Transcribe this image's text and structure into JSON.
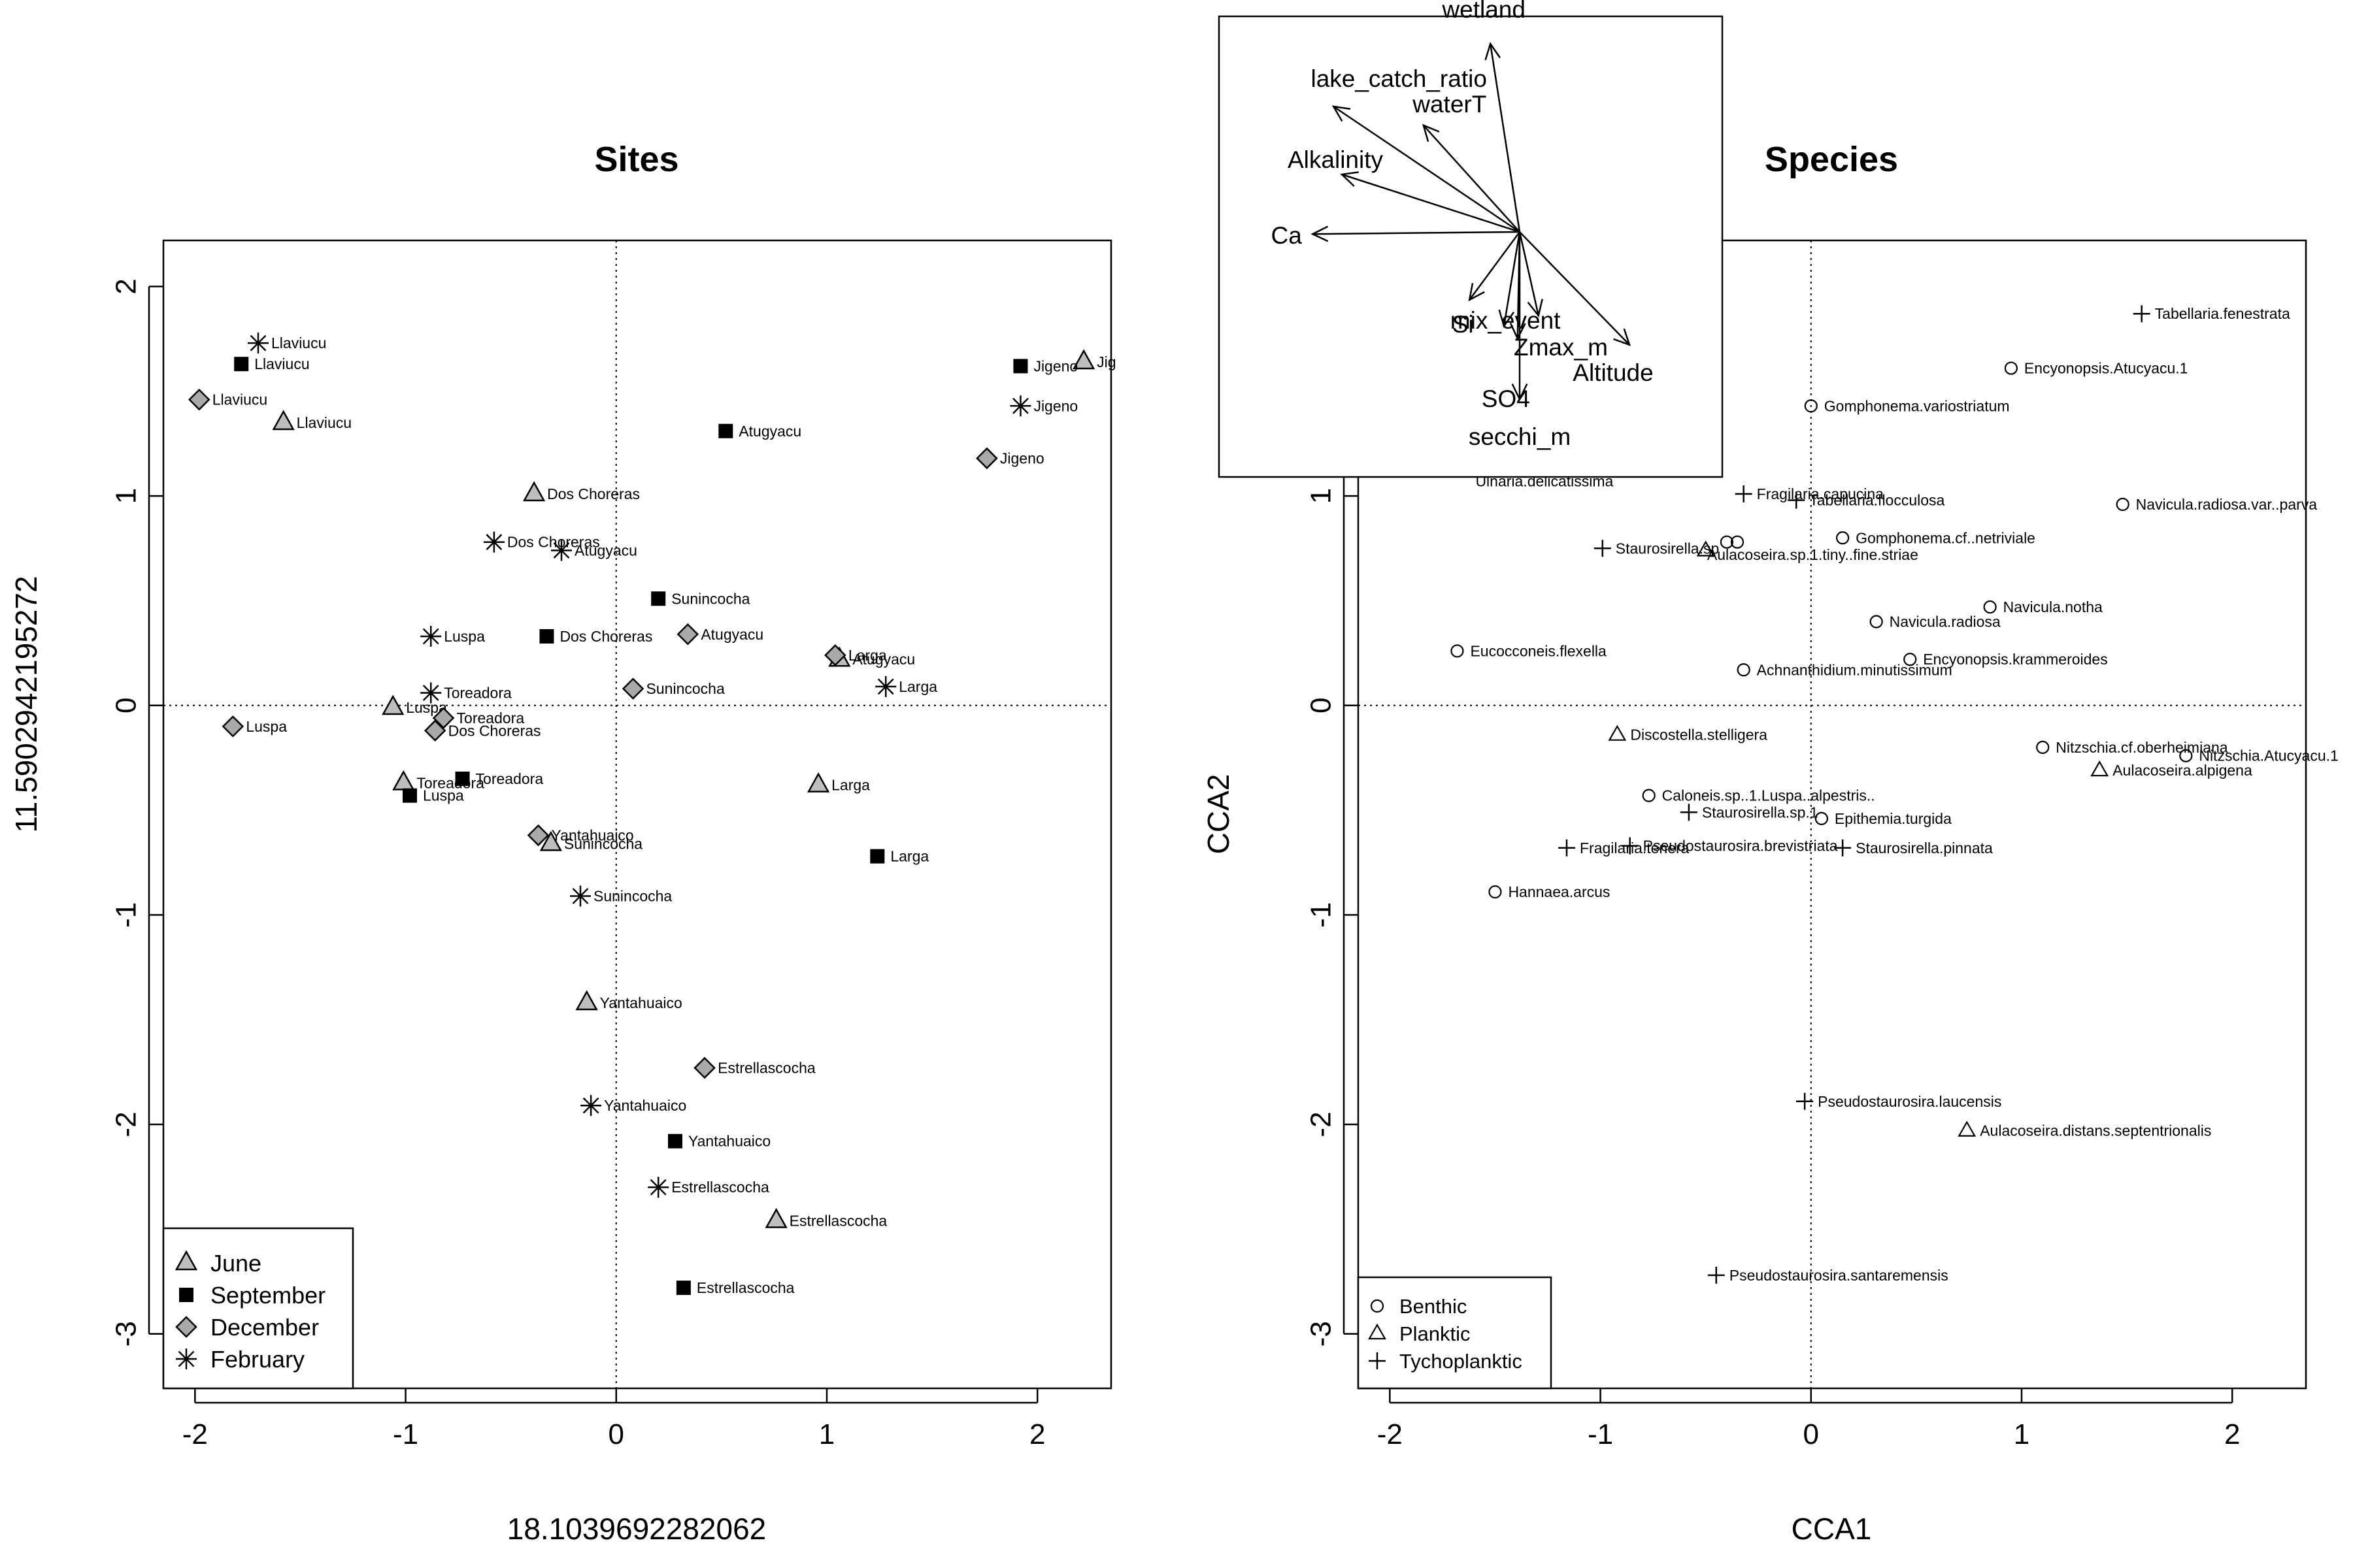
{
  "colors": {
    "june": "#BEBEBE",
    "september": "#000000",
    "december": "#A9A9A9",
    "ink": "#000000",
    "bg": "#FFFFFF"
  },
  "chart_data": [
    {
      "type": "scatter",
      "title": "Sites",
      "xlabel": "18.1039692282062",
      "ylabel": "11.5902942195272",
      "xlim": [
        -2.15,
        2.35
      ],
      "ylim": [
        -3.26,
        2.22
      ],
      "xticks": [
        "-2",
        "-1",
        "0",
        "1",
        "2"
      ],
      "yticks": [
        "-3",
        "-2",
        "-1",
        "0",
        "1",
        "2"
      ],
      "grid": false,
      "reference_lines": "dotted at x=0 and y=0",
      "legend_position": "bottom-left",
      "legend": [
        "June",
        "September",
        "December",
        "February"
      ],
      "series": [
        {
          "name": "June",
          "marker": "triangle-filled-grey",
          "points": [
            {
              "x": -1.58,
              "y": 1.35,
              "label": "Llaviucu"
            },
            {
              "x": -0.39,
              "y": 1.01,
              "label": "Dos Choreras"
            },
            {
              "x": 2.22,
              "y": 1.64,
              "label": "Jig"
            },
            {
              "x": -1.06,
              "y": -0.01,
              "label": "Luspa"
            },
            {
              "x": -1.01,
              "y": -0.37,
              "label": "Toreadora"
            },
            {
              "x": -0.31,
              "y": -0.66,
              "label": "Sunincocha"
            },
            {
              "x": 1.06,
              "y": 0.22,
              "label": "Atugyacu"
            },
            {
              "x": 0.96,
              "y": -0.38,
              "label": "Larga"
            },
            {
              "x": -0.14,
              "y": -1.42,
              "label": "Yantahuaico"
            },
            {
              "x": 0.76,
              "y": -2.46,
              "label": "Estrellascocha"
            }
          ]
        },
        {
          "name": "September",
          "marker": "square-filled-black",
          "points": [
            {
              "x": -1.78,
              "y": 1.63,
              "label": "Llaviucu"
            },
            {
              "x": 1.92,
              "y": 1.62,
              "label": "Jigeno"
            },
            {
              "x": 0.52,
              "y": 1.31,
              "label": "Atugyacu"
            },
            {
              "x": 0.2,
              "y": 0.51,
              "label": "Sunincocha"
            },
            {
              "x": -0.33,
              "y": 0.33,
              "label": "Dos Choreras"
            },
            {
              "x": -0.73,
              "y": -0.35,
              "label": "Toreadora"
            },
            {
              "x": -0.98,
              "y": -0.43,
              "label": "Luspa"
            },
            {
              "x": 1.24,
              "y": -0.72,
              "label": "Larga"
            },
            {
              "x": 0.28,
              "y": -2.08,
              "label": "Yantahuaico"
            },
            {
              "x": 0.32,
              "y": -2.78,
              "label": "Estrellascocha"
            }
          ]
        },
        {
          "name": "December",
          "marker": "diamond-filled-grey",
          "points": [
            {
              "x": -1.98,
              "y": 1.46,
              "label": "Llaviucu"
            },
            {
              "x": 1.76,
              "y": 1.18,
              "label": "Jigeno"
            },
            {
              "x": 0.34,
              "y": 0.34,
              "label": "Atugyacu"
            },
            {
              "x": 1.04,
              "y": 0.24,
              "label": "Larga"
            },
            {
              "x": 0.08,
              "y": 0.08,
              "label": "Sunincocha"
            },
            {
              "x": -1.82,
              "y": -0.1,
              "label": "Luspa"
            },
            {
              "x": -0.82,
              "y": -0.06,
              "label": "Toreadora"
            },
            {
              "x": -0.86,
              "y": -0.12,
              "label": "Dos Choreras"
            },
            {
              "x": -0.37,
              "y": -0.62,
              "label": "Yantahuaico"
            },
            {
              "x": 0.42,
              "y": -1.73,
              "label": "Estrellascocha"
            }
          ]
        },
        {
          "name": "February",
          "marker": "asterisk",
          "points": [
            {
              "x": -1.7,
              "y": 1.73,
              "label": "Llaviucu"
            },
            {
              "x": 1.92,
              "y": 1.43,
              "label": "Jigeno"
            },
            {
              "x": -0.58,
              "y": 0.78,
              "label": "Dos Choreras"
            },
            {
              "x": -0.26,
              "y": 0.74,
              "label": "Atugyacu"
            },
            {
              "x": -0.88,
              "y": 0.33,
              "label": "Luspa"
            },
            {
              "x": -0.88,
              "y": 0.06,
              "label": "Toreadora"
            },
            {
              "x": 1.28,
              "y": 0.09,
              "label": "Larga"
            },
            {
              "x": -0.17,
              "y": -0.91,
              "label": "Sunincocha"
            },
            {
              "x": -0.12,
              "y": -1.91,
              "label": "Yantahuaico"
            },
            {
              "x": 0.2,
              "y": -2.3,
              "label": "Estrellascocha"
            }
          ]
        }
      ]
    },
    {
      "type": "scatter",
      "title": "Species",
      "xlabel": "CCA1",
      "ylabel": "CCA2",
      "xlim": [
        -2.15,
        2.35
      ],
      "ylim": [
        -3.26,
        2.22
      ],
      "xticks": [
        "-2",
        "-1",
        "0",
        "1",
        "2"
      ],
      "yticks": [
        "-3",
        "-2",
        "-1",
        "0",
        "1",
        "2"
      ],
      "grid": false,
      "reference_lines": "dotted at x=0 and y=0",
      "legend_position": "bottom-left",
      "legend": [
        "Benthic",
        "Planktic",
        "Tychoplanktic"
      ],
      "series": [
        {
          "name": "Benthic",
          "marker": "circle-open",
          "points": [
            {
              "x": 0.0,
              "y": 1.43,
              "label": "Gomphonema.variostriatum"
            },
            {
              "x": 0.95,
              "y": 1.61,
              "label": "Encyonopsis.Atucyacu.1"
            },
            {
              "x": 1.48,
              "y": 0.96,
              "label": "Navicula.radiosa.var..parva"
            },
            {
              "x": 0.15,
              "y": 0.8,
              "label": "Gomphonema.cf..netriviale"
            },
            {
              "x": -0.35,
              "y": 0.78,
              "label": ""
            },
            {
              "x": -0.4,
              "y": 0.78,
              "label": ""
            },
            {
              "x": 0.85,
              "y": 0.47,
              "label": "Navicula.notha"
            },
            {
              "x": 0.31,
              "y": 0.4,
              "label": "Navicula.radiosa"
            },
            {
              "x": 0.47,
              "y": 0.22,
              "label": "Encyonopsis.krammeroides"
            },
            {
              "x": -0.32,
              "y": 0.17,
              "label": "Achnanthidium.minutissimum"
            },
            {
              "x": -1.68,
              "y": 0.26,
              "label": "Eucocconeis.flexella"
            },
            {
              "x": 1.1,
              "y": -0.2,
              "label": "Nitzschia.cf.oberheimiana"
            },
            {
              "x": 1.78,
              "y": -0.24,
              "label": "Nitzschia.Atucyacu.1"
            },
            {
              "x": -0.77,
              "y": -0.43,
              "label": "Caloneis.sp..1.Luspa..alpestris.."
            },
            {
              "x": 0.05,
              "y": -0.54,
              "label": "Epithemia.turgida"
            },
            {
              "x": -1.5,
              "y": -0.89,
              "label": "Hannaea.arcus"
            }
          ]
        },
        {
          "name": "Planktic",
          "marker": "triangle-open",
          "points": [
            {
              "x": -0.5,
              "y": 0.74,
              "label": ""
            },
            {
              "x": -0.92,
              "y": -0.14,
              "label": "Discostella.stelligera"
            },
            {
              "x": 1.37,
              "y": -0.31,
              "label": "Aulacoseira.alpigena"
            },
            {
              "x": 0.74,
              "y": -2.03,
              "label": "Aulacoseira.distans.septentrionalis"
            }
          ]
        },
        {
          "name": "Tychoplanktic",
          "marker": "plus",
          "points": [
            {
              "x": 1.57,
              "y": 1.87,
              "label": "Tabellaria.fenestrata"
            },
            {
              "x": -0.32,
              "y": 1.01,
              "label": "Fragilaria.capucina"
            },
            {
              "x": -0.07,
              "y": 0.98,
              "label": "Tabellaria.flocculosa"
            },
            {
              "x": -0.99,
              "y": 0.75,
              "label": "Staurosirella.sp"
            },
            {
              "x": -0.58,
              "y": -0.51,
              "label": "Staurosirella.sp.1"
            },
            {
              "x": -1.16,
              "y": -0.68,
              "label": "Fragilaria.tenera"
            },
            {
              "x": -0.86,
              "y": -0.67,
              "label": "Pseudostaurosira.brevistriata"
            },
            {
              "x": 0.15,
              "y": -0.68,
              "label": "Staurosirella.pinnata"
            },
            {
              "x": -0.03,
              "y": -1.89,
              "label": "Pseudostaurosira.laucensis"
            },
            {
              "x": -0.45,
              "y": -2.72,
              "label": "Pseudostaurosira.santaremensis"
            }
          ]
        }
      ],
      "extra_labels": [
        {
          "x": -1.5,
          "y": 1.07,
          "label": "Ulnaria.delicatissima"
        },
        {
          "x": -0.4,
          "y": 0.72,
          "label": "Aulacoseira.sp.1.tiny..fine.striae"
        }
      ]
    },
    {
      "type": "biplot-arrows",
      "title": "",
      "arrows": [
        {
          "name": "wetland",
          "dx": -0.28,
          "dy": 1.8
        },
        {
          "name": "lake_catch_ratio",
          "dx": -1.78,
          "dy": 1.2
        },
        {
          "name": "waterT",
          "dx": -0.92,
          "dy": 1.02
        },
        {
          "name": "Alkalinity",
          "dx": -1.7,
          "dy": 0.55
        },
        {
          "name": "Ca",
          "dx": -1.98,
          "dy": -0.02
        },
        {
          "name": "Si",
          "dx": -0.48,
          "dy": -0.65
        },
        {
          "name": "Zmax_m",
          "dx": -0.15,
          "dy": -0.9
        },
        {
          "name": "SO4",
          "dx": -0.02,
          "dy": -1.02
        },
        {
          "name": "mix_event",
          "dx": 0.18,
          "dy": -0.8
        },
        {
          "name": "Altitude",
          "dx": 1.05,
          "dy": -1.08
        },
        {
          "name": "secchi_m",
          "dx": 0.0,
          "dy": -1.6
        }
      ]
    }
  ]
}
